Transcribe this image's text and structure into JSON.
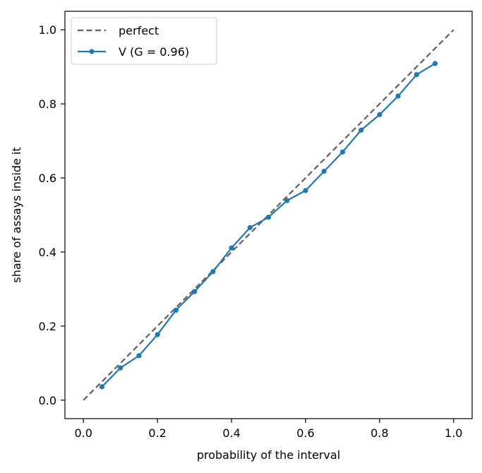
{
  "chart_data": {
    "type": "line",
    "xlabel": "probability of the interval",
    "ylabel": "share of assays inside it",
    "xlim": [
      -0.05,
      1.05
    ],
    "ylim": [
      -0.05,
      1.05
    ],
    "xticks": [
      0.0,
      0.2,
      0.4,
      0.6,
      0.8,
      1.0
    ],
    "yticks": [
      0.0,
      0.2,
      0.4,
      0.6,
      0.8,
      1.0
    ],
    "xtick_labels": [
      "0.0",
      "0.2",
      "0.4",
      "0.6",
      "0.8",
      "1.0"
    ],
    "ytick_labels": [
      "0.0",
      "0.2",
      "0.4",
      "0.6",
      "0.8",
      "1.0"
    ],
    "grid": false,
    "legend": {
      "position": "top-left"
    },
    "series": [
      {
        "name": "perfect",
        "style": "dashed",
        "color": "#606060",
        "x": [
          0.0,
          1.0
        ],
        "y": [
          0.0,
          1.0
        ]
      },
      {
        "name": "V (G = 0.96)",
        "style": "solid-markers",
        "color": "#1f77b4",
        "x": [
          0.05,
          0.1,
          0.15,
          0.2,
          0.25,
          0.3,
          0.35,
          0.4,
          0.45,
          0.5,
          0.55,
          0.6,
          0.65,
          0.7,
          0.75,
          0.8,
          0.85,
          0.9,
          0.95
        ],
        "y": [
          0.036,
          0.087,
          0.12,
          0.177,
          0.243,
          0.293,
          0.347,
          0.411,
          0.466,
          0.494,
          0.539,
          0.566,
          0.618,
          0.67,
          0.729,
          0.771,
          0.821,
          0.879,
          0.909
        ]
      }
    ]
  }
}
